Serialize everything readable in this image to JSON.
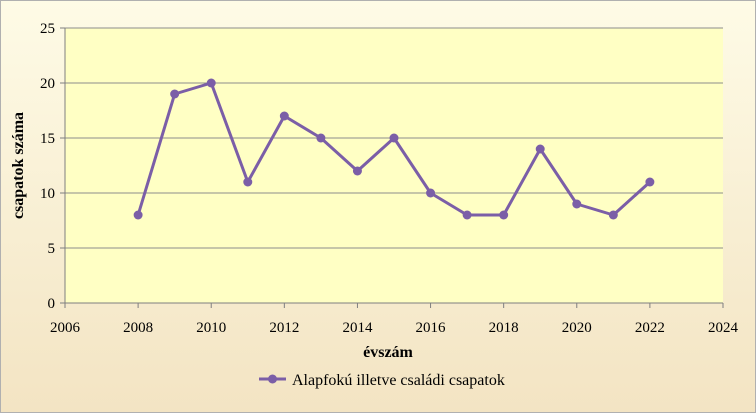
{
  "chart_data": {
    "type": "line",
    "xlabel": "évszám",
    "ylabel": "csapatok száma",
    "xlim": [
      2006,
      2024
    ],
    "ylim": [
      0,
      25
    ],
    "xticks": [
      2006,
      2008,
      2010,
      2012,
      2014,
      2016,
      2018,
      2020,
      2022,
      2024
    ],
    "yticks": [
      0,
      5,
      10,
      15,
      20,
      25
    ],
    "grid": "horizontal",
    "legend_position": "bottom",
    "series": [
      {
        "name": "Alapfokú illetve családi csapatok",
        "color": "#7b5ea7",
        "x": [
          2008,
          2009,
          2010,
          2011,
          2012,
          2013,
          2014,
          2015,
          2016,
          2017,
          2018,
          2019,
          2020,
          2021,
          2022
        ],
        "y": [
          8,
          19,
          20,
          11,
          17,
          15,
          12,
          15,
          10,
          8,
          8,
          14,
          9,
          8,
          11
        ]
      }
    ]
  },
  "colors": {
    "plot_background": "#ffffc4",
    "gridline": "#8c8c8c",
    "axis": "#7f7f7f"
  }
}
